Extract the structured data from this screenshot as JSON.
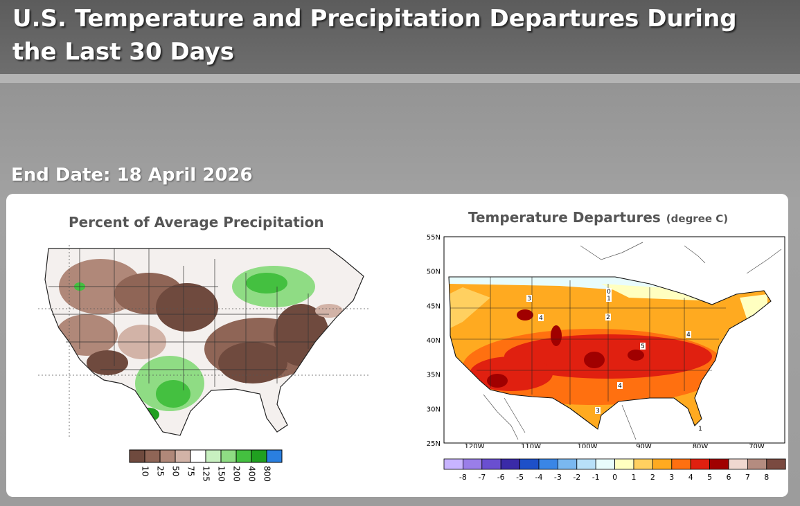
{
  "header": {
    "title": "U.S. Temperature and Precipitation Departures During the Last 30 Days",
    "end_date": "End Date: 18 April 2026"
  },
  "precip_map": {
    "title": "Percent of Average Precipitation",
    "legend": {
      "labels": [
        "10",
        "25",
        "50",
        "75",
        "125",
        "150",
        "200",
        "400",
        "800"
      ],
      "colors": [
        "#6f4a3e",
        "#8f6556",
        "#b08879",
        "#d2b3a7",
        "#ffffff",
        "#c8f0c0",
        "#8fdc84",
        "#44c040",
        "#20a020",
        "#2a7fe0"
      ]
    }
  },
  "temp_map": {
    "title": "Temperature Departures",
    "unit": "(degree C)",
    "lat_labels": [
      "55N",
      "50N",
      "45N",
      "40N",
      "35N",
      "30N",
      "25N"
    ],
    "lon_labels": [
      "120W",
      "110W",
      "100W",
      "90W",
      "80W",
      "70W"
    ],
    "contour_labels": [
      "0",
      "1",
      "2",
      "3",
      "4",
      "4",
      "5",
      "4",
      "3",
      "1"
    ],
    "legend": {
      "labels": [
        "-8",
        "-7",
        "-6",
        "-5",
        "-4",
        "-3",
        "-2",
        "-1",
        "0",
        "1",
        "2",
        "3",
        "4",
        "5",
        "6",
        "7",
        "8"
      ],
      "colors": [
        "#c8b4ff",
        "#9a7ee8",
        "#6a4fd0",
        "#3a2aa8",
        "#1e50c8",
        "#3a86e6",
        "#7ab8f0",
        "#b8e0f8",
        "#e8fcfc",
        "#ffffc0",
        "#ffd060",
        "#ffaa20",
        "#ff7010",
        "#e02010",
        "#a00000",
        "#f0d8d0",
        "#b48c80",
        "#7a4a40"
      ]
    }
  }
}
